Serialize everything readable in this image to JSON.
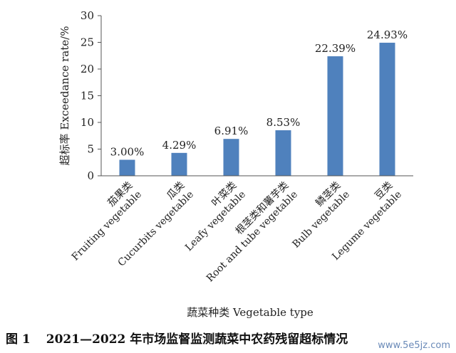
{
  "chart_data": {
    "type": "bar",
    "categories": [
      [
        "茄果类",
        "Fruiting vegetable"
      ],
      [
        "瓜类",
        "Cucurbits vegetable"
      ],
      [
        "叶菜类",
        "Leafy vegetable"
      ],
      [
        "根茎类和薯芋类",
        "Root and tube vegetable"
      ],
      [
        "鳞茎类",
        "Bulb vegetable"
      ],
      [
        "豆类",
        "Legume vegetable"
      ]
    ],
    "values": [
      3.0,
      4.29,
      6.91,
      8.53,
      22.39,
      24.93
    ],
    "data_labels": [
      "3.00%",
      "4.29%",
      "6.91%",
      "8.53%",
      "22.39%",
      "24.93%"
    ],
    "ylim": [
      0,
      30
    ],
    "yticks": [
      0,
      5,
      10,
      15,
      20,
      25,
      30
    ],
    "ylabel": "超标率 Exceedance rate/%",
    "xlabel": "蔬菜种类 Vegetable type",
    "bar_color": "#4f81bd",
    "grid": false,
    "legend": "none"
  },
  "caption": {
    "figure_number": "图 1",
    "text": "2021—2022 年市场监督监测蔬菜中农药残留超标情况"
  },
  "watermark": "www.5e5jz.com"
}
